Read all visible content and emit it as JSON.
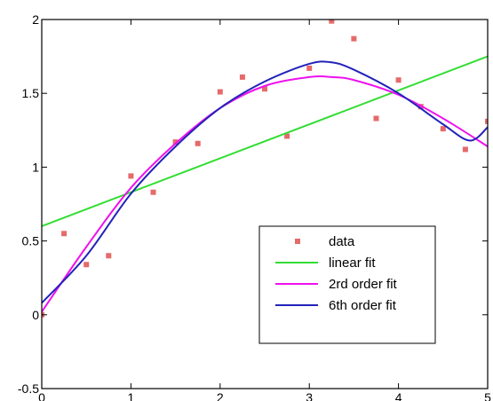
{
  "chart_data": {
    "type": "line",
    "xlim": [
      0,
      5
    ],
    "ylim": [
      -0.5,
      2
    ],
    "x_ticks": [
      "0",
      "1",
      "2",
      "3",
      "4",
      "5"
    ],
    "y_ticks": [
      "-0.5",
      "0",
      "0.5",
      "1",
      "1.5",
      "2"
    ],
    "x_tick_values": [
      0,
      1,
      2,
      3,
      4,
      5
    ],
    "y_tick_values": [
      -0.5,
      0,
      0.5,
      1,
      1.5,
      2
    ],
    "grid": false,
    "legend_position": "lower-right",
    "series": [
      {
        "name": "data",
        "style": "markers",
        "color": "#e05050",
        "x": [
          0,
          0.25,
          0.5,
          0.75,
          1.0,
          1.25,
          1.5,
          1.75,
          2.0,
          2.25,
          2.5,
          2.75,
          3.0,
          3.25,
          3.5,
          3.75,
          4.0,
          4.25,
          4.5,
          4.75,
          5.0
        ],
        "y": [
          0.0,
          0.55,
          0.34,
          0.4,
          0.94,
          0.83,
          1.17,
          1.16,
          1.51,
          1.61,
          1.53,
          1.21,
          1.67,
          1.99,
          1.87,
          1.33,
          1.59,
          1.41,
          1.26,
          1.12,
          1.31
        ]
      },
      {
        "name": "linear fit",
        "style": "line",
        "color": "#33dd33",
        "x": [
          0,
          5
        ],
        "y": [
          0.6,
          1.75
        ]
      },
      {
        "name": "2rd order fit",
        "style": "line",
        "color": "#ee11ee",
        "x": [
          0,
          0.5,
          1.0,
          1.5,
          2.0,
          2.5,
          3.0,
          3.25,
          3.5,
          4.0,
          4.5,
          5.0
        ],
        "y": [
          0.02,
          0.46,
          0.86,
          1.16,
          1.4,
          1.55,
          1.61,
          1.61,
          1.59,
          1.49,
          1.33,
          1.14
        ]
      },
      {
        "name": "6th order fit",
        "style": "line",
        "color": "#2222bb",
        "x": [
          0,
          0.5,
          1.0,
          1.5,
          2.0,
          2.5,
          3.0,
          3.25,
          3.5,
          4.0,
          4.5,
          4.8,
          5.0
        ],
        "y": [
          0.08,
          0.4,
          0.82,
          1.14,
          1.4,
          1.58,
          1.7,
          1.71,
          1.66,
          1.5,
          1.29,
          1.18,
          1.27
        ]
      }
    ],
    "legend": [
      {
        "label": "data",
        "type": "marker",
        "color": "#e05050"
      },
      {
        "label": "linear fit",
        "type": "line",
        "color": "#33dd33"
      },
      {
        "label": "2rd order fit",
        "type": "line",
        "color": "#ee11ee"
      },
      {
        "label": "6th order fit",
        "type": "line",
        "color": "#2222bb"
      }
    ]
  }
}
